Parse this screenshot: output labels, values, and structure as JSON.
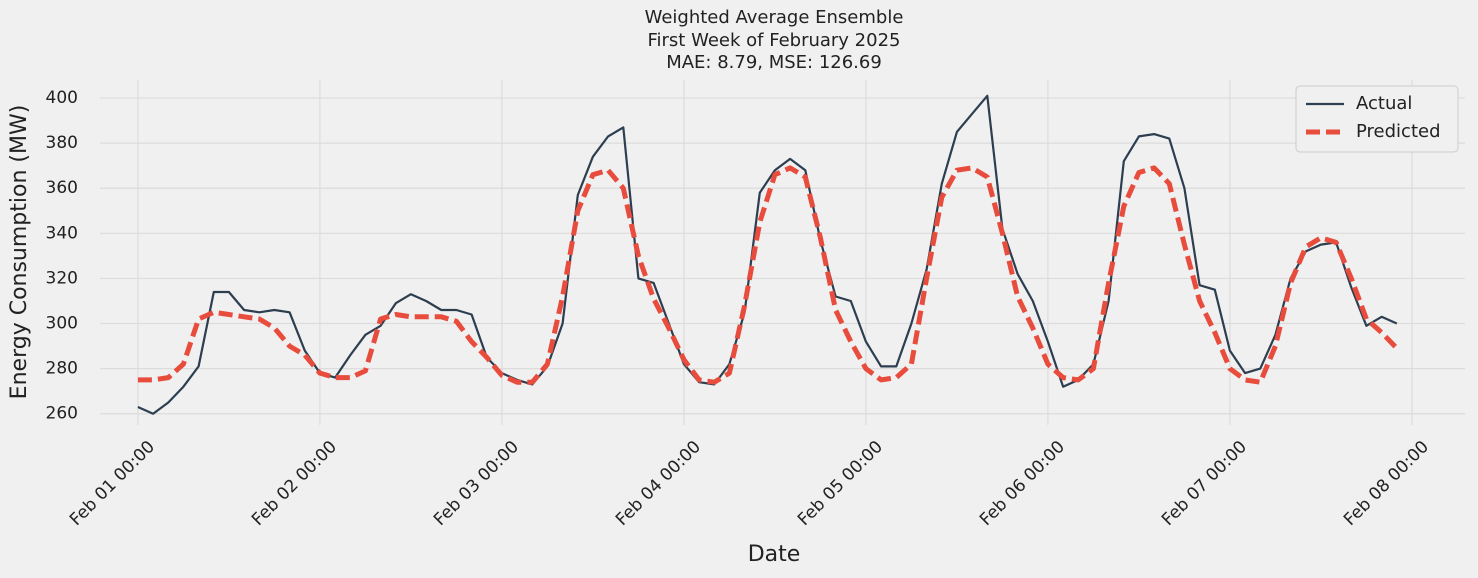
{
  "chart_data": {
    "type": "line",
    "title": [
      "Weighted Average Ensemble",
      "First Week of February 2025",
      "MAE: 8.79, MSE: 126.69"
    ],
    "x_label": "Date",
    "y_label": "Energy Consumption (MW)",
    "x": [
      "Feb 01 00:00",
      "Feb 01 02:00",
      "Feb 01 04:00",
      "Feb 01 06:00",
      "Feb 01 08:00",
      "Feb 01 10:00",
      "Feb 01 12:00",
      "Feb 01 14:00",
      "Feb 01 16:00",
      "Feb 01 18:00",
      "Feb 01 20:00",
      "Feb 01 22:00",
      "Feb 02 00:00",
      "Feb 02 02:00",
      "Feb 02 04:00",
      "Feb 02 06:00",
      "Feb 02 08:00",
      "Feb 02 10:00",
      "Feb 02 12:00",
      "Feb 02 14:00",
      "Feb 02 16:00",
      "Feb 02 18:00",
      "Feb 02 20:00",
      "Feb 02 22:00",
      "Feb 03 00:00",
      "Feb 03 02:00",
      "Feb 03 04:00",
      "Feb 03 06:00",
      "Feb 03 08:00",
      "Feb 03 10:00",
      "Feb 03 12:00",
      "Feb 03 14:00",
      "Feb 03 16:00",
      "Feb 03 18:00",
      "Feb 03 20:00",
      "Feb 03 22:00",
      "Feb 04 00:00",
      "Feb 04 02:00",
      "Feb 04 04:00",
      "Feb 04 06:00",
      "Feb 04 08:00",
      "Feb 04 10:00",
      "Feb 04 12:00",
      "Feb 04 14:00",
      "Feb 04 16:00",
      "Feb 04 18:00",
      "Feb 04 20:00",
      "Feb 04 22:00",
      "Feb 05 00:00",
      "Feb 05 02:00",
      "Feb 05 04:00",
      "Feb 05 06:00",
      "Feb 05 08:00",
      "Feb 05 10:00",
      "Feb 05 12:00",
      "Feb 05 14:00",
      "Feb 05 16:00",
      "Feb 05 18:00",
      "Feb 05 20:00",
      "Feb 05 22:00",
      "Feb 06 00:00",
      "Feb 06 02:00",
      "Feb 06 04:00",
      "Feb 06 06:00",
      "Feb 06 08:00",
      "Feb 06 10:00",
      "Feb 06 12:00",
      "Feb 06 14:00",
      "Feb 06 16:00",
      "Feb 06 18:00",
      "Feb 06 20:00",
      "Feb 06 22:00",
      "Feb 07 00:00",
      "Feb 07 02:00",
      "Feb 07 04:00",
      "Feb 07 06:00",
      "Feb 07 08:00",
      "Feb 07 10:00",
      "Feb 07 12:00",
      "Feb 07 14:00",
      "Feb 07 16:00",
      "Feb 07 18:00",
      "Feb 07 20:00",
      "Feb 07 22:00"
    ],
    "series": [
      {
        "name": "Actual",
        "color": "#2c3e50",
        "linestyle": "solid",
        "values": [
          263,
          260,
          265,
          272,
          281,
          314,
          314,
          306,
          305,
          306,
          305,
          288,
          278,
          276,
          286,
          295,
          299,
          309,
          313,
          310,
          306,
          306,
          304,
          285,
          278,
          275,
          273,
          281,
          300,
          357,
          374,
          383,
          387,
          320,
          318,
          300,
          282,
          274,
          273,
          282,
          305,
          358,
          368,
          373,
          368,
          337,
          312,
          310,
          292,
          281,
          281,
          300,
          324,
          362,
          385,
          393,
          401,
          342,
          322,
          310,
          292,
          272,
          275,
          282,
          310,
          372,
          383,
          384,
          382,
          360,
          317,
          315,
          288,
          278,
          280,
          295,
          320,
          332,
          335,
          336,
          316,
          299,
          303,
          300
        ]
      },
      {
        "name": "Predicted",
        "color": "#e74c3c",
        "linestyle": "dashed",
        "values": [
          275,
          275,
          276,
          282,
          302,
          305,
          304,
          303,
          302,
          298,
          290,
          286,
          278,
          276,
          276,
          279,
          302,
          304,
          303,
          303,
          303,
          301,
          292,
          285,
          277,
          274,
          274,
          282,
          312,
          350,
          366,
          368,
          360,
          330,
          311,
          298,
          284,
          275,
          274,
          278,
          308,
          345,
          366,
          369,
          365,
          338,
          306,
          292,
          280,
          275,
          276,
          282,
          320,
          356,
          368,
          369,
          365,
          340,
          312,
          298,
          282,
          276,
          275,
          280,
          318,
          352,
          367,
          369,
          362,
          335,
          310,
          296,
          280,
          275,
          274,
          290,
          318,
          334,
          338,
          336,
          320,
          302,
          296,
          289
        ]
      }
    ],
    "xlim": [
      "Jan 31 19:00",
      "Feb 08 07:00"
    ],
    "xticks": [
      "Feb 01 00:00",
      "Feb 02 00:00",
      "Feb 03 00:00",
      "Feb 04 00:00",
      "Feb 05 00:00",
      "Feb 06 00:00",
      "Feb 07 00:00",
      "Feb 08 00:00"
    ],
    "ylim": [
      255,
      408
    ],
    "yticks": [
      260,
      280,
      300,
      320,
      340,
      360,
      380,
      400
    ],
    "grid": true,
    "legend": "upper right"
  }
}
